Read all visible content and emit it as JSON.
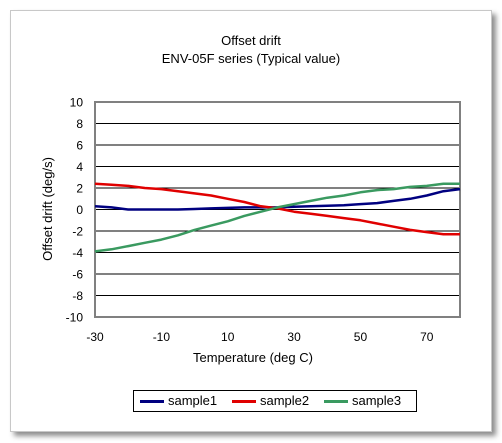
{
  "chart_data": {
    "type": "line",
    "title": "Offset drift",
    "subtitle": "ENV-05F series (Typical value)",
    "xlabel": "Temperature (deg C)",
    "ylabel": "Offset drift (deg/s)",
    "xlim": [
      -30,
      80
    ],
    "ylim": [
      -10,
      10
    ],
    "x_ticks": [
      "-30",
      "-10",
      "10",
      "30",
      "50",
      "70"
    ],
    "y_ticks": [
      "10",
      "8",
      "6",
      "4",
      "2",
      "0",
      "-2",
      "-4",
      "-6",
      "-8",
      "-10"
    ],
    "grid": "horizontal",
    "legend_position": "bottom",
    "plot_background": "#ffffff",
    "x": [
      -30,
      -25,
      -20,
      -15,
      -10,
      -5,
      0,
      5,
      10,
      15,
      20,
      25,
      30,
      35,
      40,
      45,
      50,
      55,
      60,
      65,
      70,
      75,
      80
    ],
    "series": [
      {
        "name": "sample1",
        "color": "#000080",
        "values": [
          0.3,
          0.2,
          0.0,
          0.0,
          0.0,
          0.0,
          0.05,
          0.1,
          0.15,
          0.2,
          0.2,
          0.2,
          0.25,
          0.3,
          0.35,
          0.4,
          0.5,
          0.6,
          0.8,
          1.0,
          1.3,
          1.7,
          1.9
        ]
      },
      {
        "name": "sample2",
        "color": "#e00000",
        "values": [
          2.4,
          2.3,
          2.2,
          2.0,
          1.9,
          1.7,
          1.5,
          1.3,
          1.0,
          0.7,
          0.3,
          0.1,
          -0.2,
          -0.4,
          -0.6,
          -0.8,
          -1.0,
          -1.3,
          -1.6,
          -1.9,
          -2.1,
          -2.3,
          -2.3
        ]
      },
      {
        "name": "sample3",
        "color": "#3a9a60",
        "values": [
          -3.9,
          -3.7,
          -3.4,
          -3.1,
          -2.8,
          -2.4,
          -1.9,
          -1.5,
          -1.1,
          -0.6,
          -0.2,
          0.2,
          0.5,
          0.8,
          1.1,
          1.3,
          1.6,
          1.8,
          1.9,
          2.1,
          2.2,
          2.4,
          2.4
        ]
      }
    ]
  }
}
